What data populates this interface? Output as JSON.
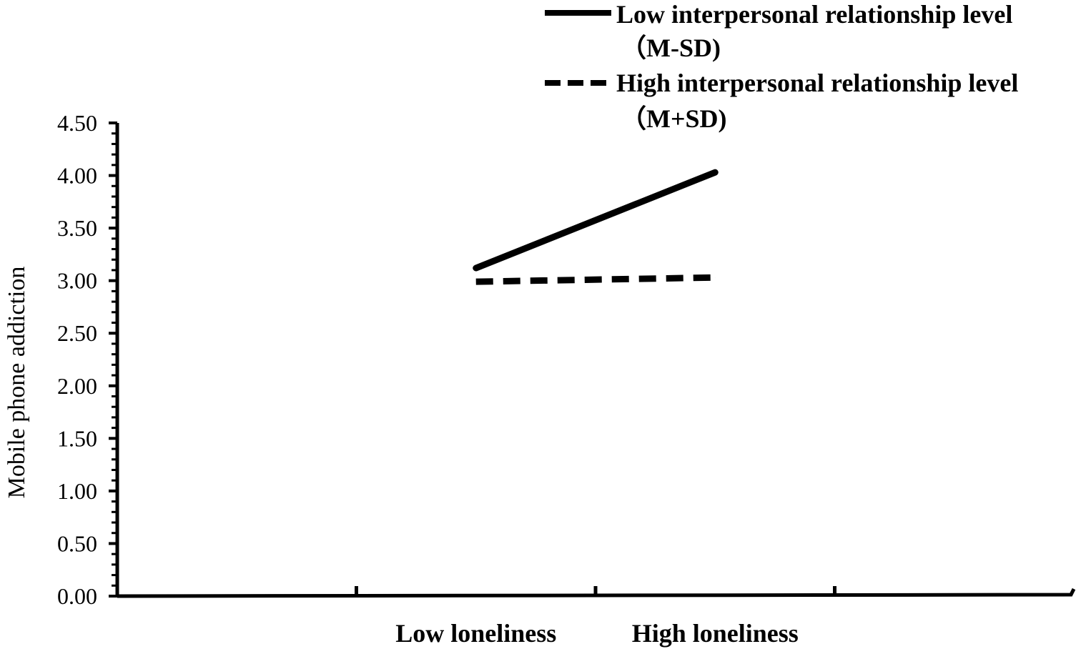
{
  "chart_data": {
    "type": "line",
    "categories": [
      "Low loneliness",
      "High loneliness"
    ],
    "ylabel": "Mobile phone addiction",
    "xlabel": "",
    "ylim": [
      0,
      4.5
    ],
    "ytick_step": 0.5,
    "yticks": [
      "0.00",
      "0.50",
      "1.00",
      "1.50",
      "2.00",
      "2.50",
      "3.00",
      "3.50",
      "4.00",
      "4.50"
    ],
    "grid": false,
    "legend_position": "top-right",
    "series": [
      {
        "name": "Low interpersonal relationship level",
        "name_line2": "（M-SD)",
        "values": [
          3.12,
          4.03
        ],
        "style": "solid",
        "color": "#000000"
      },
      {
        "name": "High interpersonal relationship level",
        "name_line2": "（M+SD)",
        "values": [
          2.99,
          3.03
        ],
        "style": "dashed",
        "color": "#000000"
      }
    ]
  }
}
